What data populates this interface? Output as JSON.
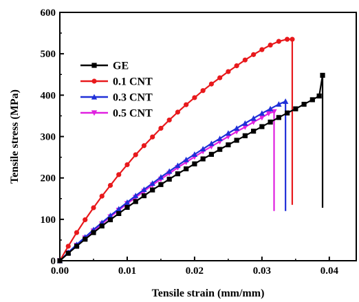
{
  "chart_data": {
    "type": "line",
    "xlabel": "Tensile strain (mm/mm)",
    "ylabel": "Tensile stress (MPa)",
    "xlim": [
      0,
      0.044
    ],
    "ylim": [
      0,
      600
    ],
    "xticks": [
      0.0,
      0.01,
      0.02,
      0.03,
      0.04
    ],
    "xtick_labels": [
      "0.00",
      "0.01",
      "0.02",
      "0.03",
      "0.04"
    ],
    "yticks": [
      0,
      100,
      200,
      300,
      400,
      500,
      600
    ],
    "ytick_labels": [
      "0",
      "100",
      "200",
      "300",
      "400",
      "500",
      "600"
    ],
    "legend_position": "upper-left",
    "series": [
      {
        "name": "GE",
        "color": "#000000",
        "marker": "square",
        "x": [
          0,
          0.00125,
          0.0025,
          0.00375,
          0.005,
          0.00625,
          0.0075,
          0.00875,
          0.01,
          0.01125,
          0.0125,
          0.01375,
          0.015,
          0.01625,
          0.0175,
          0.01875,
          0.02,
          0.02125,
          0.0225,
          0.02375,
          0.025,
          0.02625,
          0.0275,
          0.02875,
          0.03,
          0.03125,
          0.0325,
          0.03375,
          0.035,
          0.03625,
          0.0375,
          0.0385,
          0.039,
          0.039
        ],
        "y": [
          0,
          18,
          35,
          52,
          68,
          84,
          99,
          114,
          129,
          143,
          157,
          171,
          184,
          197,
          210,
          222,
          234,
          246,
          257,
          269,
          280,
          291,
          302,
          313,
          324,
          335,
          346,
          357,
          367,
          378,
          389,
          398,
          448,
          128
        ]
      },
      {
        "name": "0.1 CNT",
        "color": "#e8191c",
        "marker": "circle",
        "x": [
          0,
          0.00125,
          0.0025,
          0.00375,
          0.005,
          0.00625,
          0.0075,
          0.00875,
          0.01,
          0.01125,
          0.0125,
          0.01375,
          0.015,
          0.01625,
          0.0175,
          0.01875,
          0.02,
          0.02125,
          0.0225,
          0.02375,
          0.025,
          0.02625,
          0.0275,
          0.02875,
          0.03,
          0.03125,
          0.0325,
          0.03375,
          0.0345,
          0.0345
        ],
        "y": [
          0,
          35,
          68,
          99,
          128,
          156,
          182,
          208,
          232,
          256,
          278,
          299,
          320,
          340,
          359,
          377,
          394,
          411,
          427,
          442,
          457,
          471,
          485,
          498,
          510,
          521,
          530,
          535,
          535,
          135
        ]
      },
      {
        "name": "0.3 CNT",
        "color": "#1f2fd8",
        "marker": "triangle",
        "x": [
          0,
          0.00125,
          0.0025,
          0.00375,
          0.005,
          0.00625,
          0.0075,
          0.00875,
          0.01,
          0.01125,
          0.0125,
          0.01375,
          0.015,
          0.01625,
          0.0175,
          0.01875,
          0.02,
          0.02125,
          0.0225,
          0.02375,
          0.025,
          0.02625,
          0.0275,
          0.02875,
          0.03,
          0.03125,
          0.0325,
          0.0335,
          0.0335
        ],
        "y": [
          0,
          20,
          39,
          57,
          75,
          92,
          109,
          125,
          141,
          157,
          172,
          187,
          202,
          216,
          230,
          244,
          257,
          270,
          283,
          295,
          308,
          320,
          332,
          344,
          356,
          367,
          378,
          385,
          120
        ]
      },
      {
        "name": "0.5 CNT",
        "color": "#e020e0",
        "marker": "triangle-down",
        "x": [
          0,
          0.00125,
          0.0025,
          0.00375,
          0.005,
          0.00625,
          0.0075,
          0.00875,
          0.01,
          0.01125,
          0.0125,
          0.01375,
          0.015,
          0.01625,
          0.0175,
          0.01875,
          0.02,
          0.02125,
          0.0225,
          0.02375,
          0.025,
          0.02625,
          0.0275,
          0.02875,
          0.03,
          0.031,
          0.0318,
          0.0318
        ],
        "y": [
          0,
          19,
          37,
          55,
          72,
          89,
          106,
          122,
          138,
          153,
          168,
          183,
          197,
          211,
          225,
          238,
          251,
          264,
          276,
          288,
          300,
          312,
          323,
          335,
          346,
          356,
          360,
          120
        ]
      }
    ]
  }
}
